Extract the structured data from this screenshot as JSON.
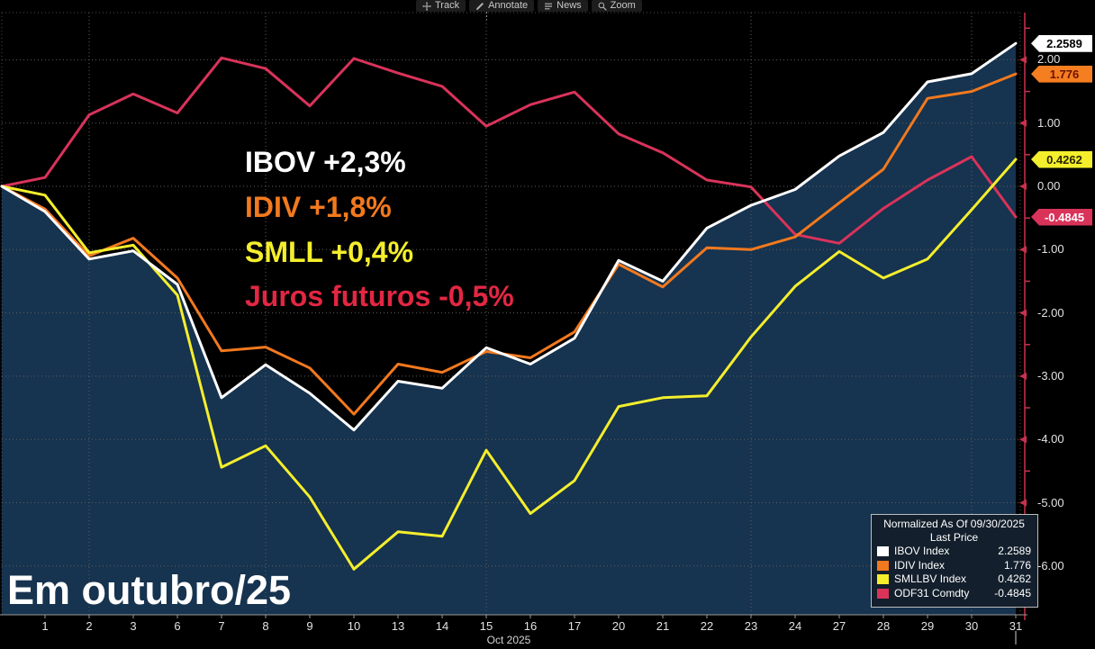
{
  "toolbar": {
    "items": [
      {
        "id": "track",
        "icon": "crosshair-icon",
        "label": "Track"
      },
      {
        "id": "annotate",
        "icon": "pencil-icon",
        "label": "Annotate"
      },
      {
        "id": "news",
        "icon": "news-lines-icon",
        "label": "News"
      },
      {
        "id": "zoom",
        "icon": "magnifier-icon",
        "label": "Zoom"
      }
    ]
  },
  "annotations": {
    "lines": [
      {
        "id": "ibov",
        "text": "IBOV +2,3%",
        "color": "#ffffff"
      },
      {
        "id": "idiv",
        "text": "IDIV +1,8%",
        "color": "#f2791e"
      },
      {
        "id": "smll",
        "text": "SMLL +0,4%",
        "color": "#f4ee2c"
      },
      {
        "id": "juros",
        "text": "Juros futuros -0,5%",
        "color": "#e22743"
      }
    ],
    "period_title": "Em outubro/25"
  },
  "legend": {
    "title": "Normalized As Of 09/30/2025",
    "subtitle": "Last Price",
    "rows": [
      {
        "name": "IBOV Index",
        "value": "2.2589",
        "color": "#ffffff"
      },
      {
        "name": "IDIV Index",
        "value": "1.776",
        "color": "#f2791e"
      },
      {
        "name": "SMLLBV Index",
        "value": "0.4262",
        "color": "#f4ee2c"
      },
      {
        "name": "ODF31 Comdty",
        "value": "-0.4845",
        "color": "#d9335a"
      }
    ]
  },
  "price_tags": [
    {
      "label": "2.2589",
      "value": 2.2589,
      "bg": "#ffffff",
      "fg": "#000000"
    },
    {
      "label": "1.776",
      "value": 1.776,
      "bg": "#f57e20",
      "fg": "#6b1205"
    },
    {
      "label": "0.4262",
      "value": 0.4262,
      "bg": "#f4ee2c",
      "fg": "#2a2400"
    },
    {
      "label": "-0.4845",
      "value": -0.4845,
      "bg": "#d9335a",
      "fg": "#ffffff"
    }
  ],
  "y_axis": {
    "tick_labels": [
      "2.00",
      "1.00",
      "0.00",
      "-1.00",
      "-2.00",
      "-3.00",
      "-4.00",
      "-5.00",
      "-6.00"
    ],
    "tick_values": [
      2,
      1,
      0,
      -1,
      -2,
      -3,
      -4,
      -5,
      -6
    ],
    "minor_tick_values": [
      2.5,
      1.5,
      0.5,
      -0.5,
      -1.5,
      -2.5,
      -3.5,
      -4.5,
      -5.5,
      -6.5
    ]
  },
  "x_axis": {
    "tick_labels": [
      "1",
      "2",
      "3",
      "6",
      "7",
      "8",
      "9",
      "10",
      "13",
      "14",
      "15",
      "16",
      "17",
      "20",
      "21",
      "22",
      "23",
      "24",
      "27",
      "28",
      "29",
      "30",
      "31"
    ],
    "month_label": "Oct 2025"
  },
  "chart_data": {
    "type": "line",
    "title": "Em outubro/25",
    "subtitle": "Normalized As Of 09/30/2025, Last Price",
    "categories": [
      "09/30",
      "1",
      "2",
      "3",
      "6",
      "7",
      "8",
      "9",
      "10",
      "13",
      "14",
      "15",
      "16",
      "17",
      "20",
      "21",
      "22",
      "23",
      "24",
      "27",
      "28",
      "29",
      "30",
      "31"
    ],
    "x_axis_label": "Oct 2025",
    "ylim": [
      -6.6,
      2.75
    ],
    "y_ticks": [
      2,
      1,
      0,
      -1,
      -2,
      -3,
      -4,
      -5,
      -6
    ],
    "grid": "dotted",
    "legend_position": "bottom-right",
    "v_gridline_categories": [
      "2",
      "8",
      "15",
      "23",
      "30"
    ],
    "area_series": "IBOV Index",
    "area_fill": "#16334f",
    "grid_color": "#5f5f5f",
    "axis_color": "#c9304f",
    "series": [
      {
        "name": "IBOV Index",
        "color": "#ffffff",
        "last_price": 2.2589,
        "values": [
          0,
          -0.4,
          -1.15,
          -1.02,
          -1.55,
          -3.34,
          -2.82,
          -3.27,
          -3.85,
          -3.08,
          -3.19,
          -2.55,
          -2.81,
          -2.4,
          -1.17,
          -1.5,
          -0.66,
          -0.3,
          -0.05,
          0.48,
          0.85,
          1.65,
          1.78,
          2.2589
        ]
      },
      {
        "name": "IDIV Index",
        "color": "#f2791e",
        "last_price": 1.776,
        "values": [
          0,
          -0.36,
          -1.1,
          -0.82,
          -1.45,
          -2.6,
          -2.54,
          -2.87,
          -3.6,
          -2.81,
          -2.94,
          -2.61,
          -2.71,
          -2.3,
          -1.23,
          -1.59,
          -0.97,
          -1.0,
          -0.8,
          -0.26,
          0.27,
          1.39,
          1.5,
          1.776
        ]
      },
      {
        "name": "SMLLBV Index",
        "color": "#f4ee2c",
        "last_price": 0.4262,
        "values": [
          0,
          -0.14,
          -1.05,
          -0.93,
          -1.72,
          -4.44,
          -4.1,
          -4.91,
          -6.05,
          -5.46,
          -5.53,
          -4.17,
          -5.17,
          -4.65,
          -3.48,
          -3.34,
          -3.31,
          -2.38,
          -1.58,
          -1.03,
          -1.45,
          -1.15,
          -0.37,
          0.4262
        ]
      },
      {
        "name": "ODF31 Comdty",
        "color": "#d9335a",
        "last_price": -0.4845,
        "values": [
          0,
          0.14,
          1.13,
          1.46,
          1.16,
          2.03,
          1.86,
          1.27,
          2.02,
          1.79,
          1.58,
          0.95,
          1.29,
          1.49,
          0.83,
          0.53,
          0.1,
          -0.01,
          -0.76,
          -0.9,
          -0.35,
          0.1,
          0.47,
          -0.4845
        ]
      }
    ]
  }
}
